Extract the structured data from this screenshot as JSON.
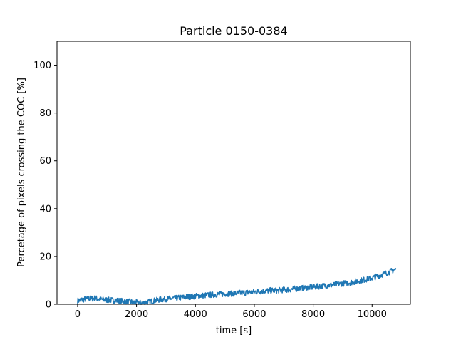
{
  "chart_data": {
    "type": "line",
    "title": "Particle 0150-0384",
    "xlabel": "time [s]",
    "ylabel": "Percetage of pixels crossing the COC [%]",
    "xlim": [
      -700,
      11300
    ],
    "ylim": [
      0,
      110
    ],
    "xticks": [
      0,
      2000,
      4000,
      6000,
      8000,
      10000
    ],
    "yticks": [
      0,
      20,
      40,
      60,
      80,
      100
    ],
    "xtick_labels": [
      "0",
      "2000",
      "4000",
      "6000",
      "8000",
      "10000"
    ],
    "ytick_labels": [
      "0",
      "20",
      "40",
      "60",
      "80",
      "100"
    ],
    "grid": false,
    "legend": "none",
    "series": [
      {
        "color": "#1f77b4",
        "x": [
          0,
          200,
          400,
          600,
          800,
          1000,
          1200,
          1400,
          1600,
          1800,
          2000,
          2200,
          2400,
          2600,
          2800,
          3000,
          3200,
          3400,
          3600,
          3800,
          4000,
          4200,
          4400,
          4600,
          4800,
          5000,
          5200,
          5400,
          5600,
          5800,
          6000,
          6200,
          6400,
          6600,
          6800,
          7000,
          7200,
          7400,
          7600,
          7800,
          8000,
          8200,
          8400,
          8600,
          8800,
          9000,
          9200,
          9400,
          9600,
          9800,
          10000,
          10200,
          10400,
          10600,
          10800
        ],
        "values": [
          1.5,
          2.0,
          2.3,
          2.5,
          2.0,
          1.8,
          1.7,
          1.5,
          1.2,
          1.0,
          0.7,
          0.5,
          1.0,
          1.5,
          2.0,
          2.2,
          2.4,
          2.6,
          2.9,
          3.2,
          3.4,
          3.6,
          3.8,
          4.0,
          4.2,
          4.4,
          4.5,
          4.6,
          4.8,
          5.0,
          5.2,
          5.4,
          5.6,
          5.8,
          5.8,
          6.0,
          6.2,
          6.5,
          6.7,
          7.0,
          7.2,
          7.5,
          7.8,
          8.0,
          8.3,
          8.7,
          9.0,
          9.4,
          9.9,
          10.4,
          11.0,
          11.8,
          12.6,
          13.6,
          14.6
        ]
      }
    ]
  }
}
